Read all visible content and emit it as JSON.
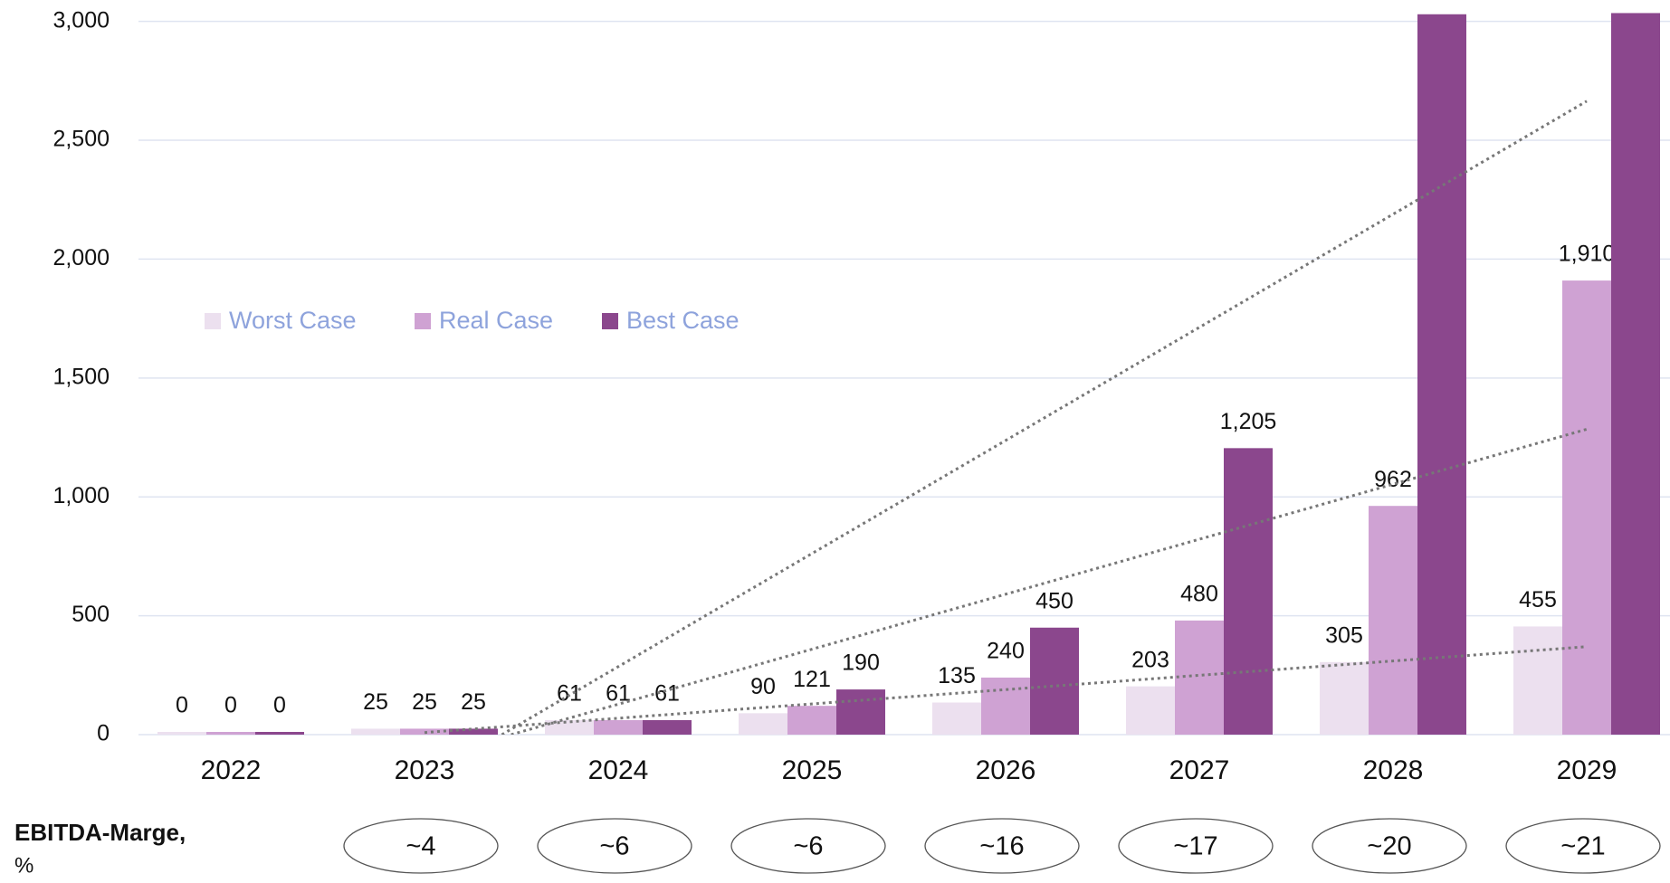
{
  "chart_data": {
    "type": "bar",
    "categories": [
      "2022",
      "2023",
      "2024",
      "2025",
      "2026",
      "2027",
      "2028",
      "2029"
    ],
    "series": [
      {
        "name": "Worst Case",
        "color": "#ece0ef",
        "values": [
          0,
          25,
          61,
          90,
          135,
          203,
          305,
          455
        ]
      },
      {
        "name": "Real Case",
        "color": "#cfa2d3",
        "values": [
          0,
          25,
          61,
          121,
          240,
          480,
          962,
          1910
        ],
        "value_labels": [
          "0",
          "25",
          "61",
          "121",
          "240",
          "480",
          "962",
          "1,910"
        ]
      },
      {
        "name": "Best Case",
        "color": "#8b478d",
        "values": [
          0,
          25,
          61,
          190,
          450,
          1205,
          3030,
          3035
        ],
        "value_labels": [
          "0",
          "25",
          "61",
          "190",
          "450",
          "1,205",
          null,
          null
        ]
      }
    ],
    "ylim": [
      0,
      3090
    ],
    "yticks": [
      0,
      500,
      {
        "value": 1000,
        "label": "1,000"
      },
      {
        "value": 1500,
        "label": "1,500"
      },
      {
        "value": 2000,
        "label": "2,000"
      },
      {
        "value": 2500,
        "label": "2,500"
      },
      {
        "value": 3000,
        "label": "3,000"
      }
    ],
    "grid": true,
    "legend": "left",
    "trendlines": true,
    "margin": {
      "label": "EBITDA-Marge,",
      "unit": "%",
      "categories": [
        "2023",
        "2024",
        "2025",
        "2026",
        "2027",
        "2028",
        "2029"
      ],
      "values": [
        "~4",
        "~6",
        "~6",
        "~16",
        "~17",
        "~20",
        "~21"
      ]
    }
  }
}
